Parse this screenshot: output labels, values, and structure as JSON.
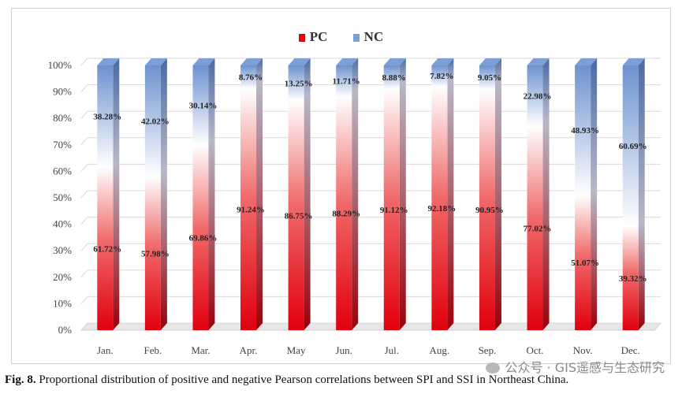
{
  "chart_data": {
    "type": "bar",
    "stacked": true,
    "percent_stacked": true,
    "categories": [
      "Jan.",
      "Feb.",
      "Mar.",
      "Apr.",
      "May",
      "Jun.",
      "Jul.",
      "Aug.",
      "Sep.",
      "Oct.",
      "Nov.",
      "Dec."
    ],
    "series": [
      {
        "name": "PC",
        "values": [
          61.72,
          57.98,
          69.86,
          91.24,
          86.75,
          88.29,
          91.12,
          92.18,
          90.95,
          77.02,
          51.07,
          39.32
        ],
        "color": "#e8000f"
      },
      {
        "name": "NC",
        "values": [
          38.28,
          42.02,
          30.14,
          8.76,
          13.25,
          11.71,
          8.88,
          7.82,
          9.05,
          22.98,
          48.93,
          60.69
        ],
        "color": "#7aa0d8"
      }
    ],
    "data_labels": {
      "PC": [
        "61.72%",
        "57.98%",
        "69.86%",
        "91.24%",
        "86.75%",
        "88.29%",
        "91.12%",
        "92.18%",
        "90.95%",
        "77.02%",
        "51.07%",
        "39.32%"
      ],
      "NC": [
        "38.28%",
        "42.02%",
        "30.14%",
        "8.76%",
        "13.25%",
        "11.71%",
        "8.88%",
        "7.82%",
        "9.05%",
        "22.98%",
        "48.93%",
        "60.69%"
      ]
    },
    "yticks": [
      "0%",
      "10%",
      "20%",
      "30%",
      "40%",
      "50%",
      "60%",
      "70%",
      "80%",
      "90%",
      "100%"
    ],
    "ylim": [
      0,
      100
    ],
    "legend_position": "top-center"
  },
  "legend": {
    "pc": "PC",
    "nc": "NC"
  },
  "caption": {
    "label": "Fig. 8.",
    "text": "Proportional distribution of positive and negative Pearson correlations between SPI and SSI in Northeast China."
  },
  "watermark": {
    "text": "公众号 · GIS遥感与生态研究"
  },
  "colors": {
    "pc": "#e8000f",
    "nc": "#7aa0d8",
    "pc_top": "#ffffff"
  }
}
